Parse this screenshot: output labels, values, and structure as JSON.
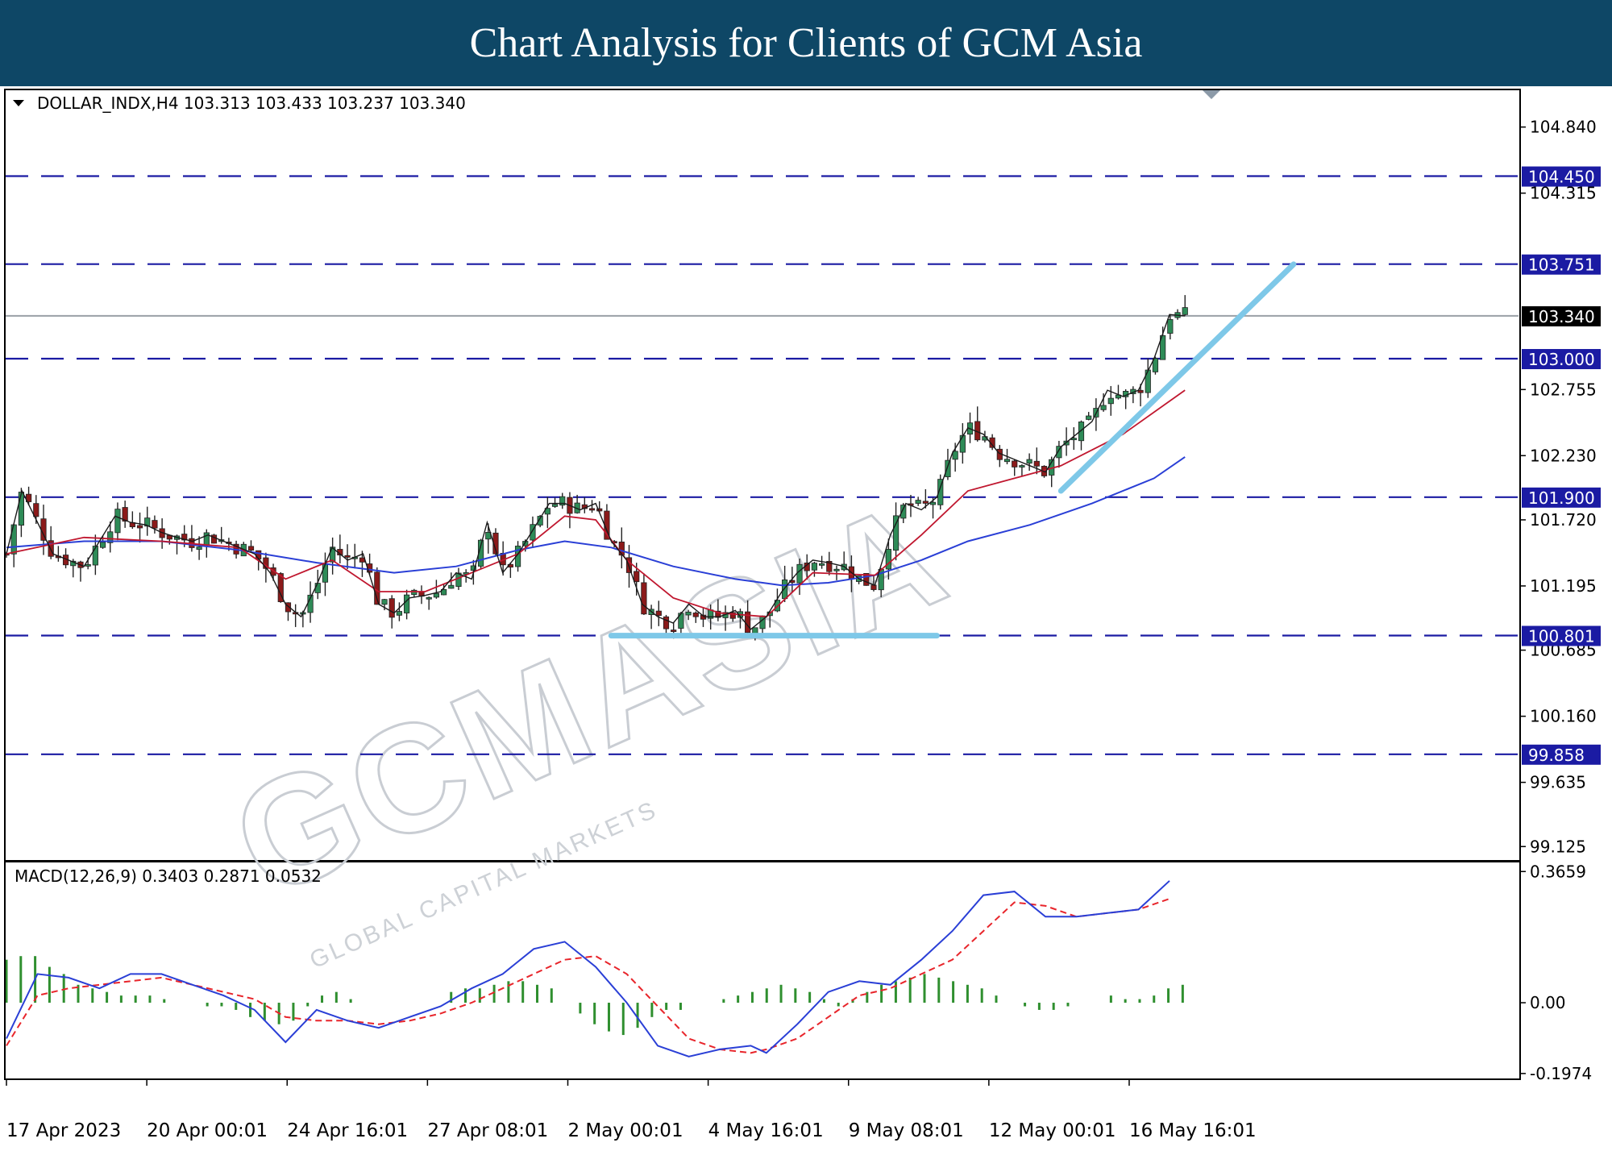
{
  "banner": {
    "title": "Chart Analysis for Clients of GCM Asia",
    "bg": "#0e4766"
  },
  "header": {
    "symbol_line": "DOLLAR_INDX,H4 103.313 103.433 103.237 103.340",
    "macd_line": "MACD(12,26,9) 0.3403 0.2871 0.0532"
  },
  "watermark": {
    "brand": "GCMASIA",
    "sub": "GLOBAL CAPITAL MARKETS"
  },
  "chart_data": {
    "type": "candlestick",
    "symbol": "DOLLAR_INDX",
    "timeframe": "H4",
    "last_ohlc": {
      "open": 103.313,
      "high": 103.433,
      "low": 103.237,
      "close": 103.34
    },
    "price_axis": {
      "range": [
        99.05,
        105.1
      ],
      "ticks": [
        "104.840",
        "104.315",
        "102.755",
        "102.230",
        "101.720",
        "101.195",
        "100.685",
        "100.160",
        "99.635",
        "99.125"
      ]
    },
    "levels": [
      {
        "value": 104.45,
        "label": "104.450"
      },
      {
        "value": 103.751,
        "label": "103.751"
      },
      {
        "value": 103.0,
        "label": "103.000"
      },
      {
        "value": 101.9,
        "label": "101.900"
      },
      {
        "value": 100.801,
        "label": "100.801"
      },
      {
        "value": 99.858,
        "label": "99.858"
      }
    ],
    "current_price": {
      "value": 103.34,
      "label": "103.340"
    },
    "time_axis": [
      "17 Apr 2023",
      "20 Apr 00:01",
      "24 Apr 16:01",
      "27 Apr 08:01",
      "2 May 00:01",
      "4 May 16:01",
      "9 May 08:01",
      "12 May 00:01",
      "16 May 16:01"
    ],
    "close_path": [
      [
        0,
        101.45
      ],
      [
        2,
        101.95
      ],
      [
        4,
        101.7
      ],
      [
        6,
        101.45
      ],
      [
        8,
        101.4
      ],
      [
        10,
        101.35
      ],
      [
        12,
        101.55
      ],
      [
        14,
        101.75
      ],
      [
        16,
        101.7
      ],
      [
        18,
        101.68
      ],
      [
        20,
        101.62
      ],
      [
        22,
        101.58
      ],
      [
        24,
        101.55
      ],
      [
        26,
        101.6
      ],
      [
        28,
        101.55
      ],
      [
        30,
        101.5
      ],
      [
        32,
        101.45
      ],
      [
        34,
        101.3
      ],
      [
        36,
        101.05
      ],
      [
        38,
        100.95
      ],
      [
        40,
        101.2
      ],
      [
        42,
        101.5
      ],
      [
        44,
        101.4
      ],
      [
        46,
        101.45
      ],
      [
        48,
        101.05
      ],
      [
        50,
        100.98
      ],
      [
        52,
        101.1
      ],
      [
        54,
        101.12
      ],
      [
        56,
        101.15
      ],
      [
        58,
        101.3
      ],
      [
        60,
        101.25
      ],
      [
        62,
        101.7
      ],
      [
        64,
        101.3
      ],
      [
        66,
        101.45
      ],
      [
        68,
        101.65
      ],
      [
        70,
        101.85
      ],
      [
        72,
        101.85
      ],
      [
        74,
        101.8
      ],
      [
        76,
        101.85
      ],
      [
        78,
        101.55
      ],
      [
        80,
        101.4
      ],
      [
        82,
        101.05
      ],
      [
        84,
        100.95
      ],
      [
        86,
        100.9
      ],
      [
        88,
        101.05
      ],
      [
        90,
        100.95
      ],
      [
        92,
        100.95
      ],
      [
        94,
        101.0
      ],
      [
        96,
        100.85
      ],
      [
        98,
        100.95
      ],
      [
        100,
        101.15
      ],
      [
        102,
        101.3
      ],
      [
        104,
        101.4
      ],
      [
        106,
        101.38
      ],
      [
        108,
        101.35
      ],
      [
        110,
        101.25
      ],
      [
        112,
        101.2
      ],
      [
        114,
        101.6
      ],
      [
        116,
        101.85
      ],
      [
        118,
        101.8
      ],
      [
        120,
        101.9
      ],
      [
        122,
        102.25
      ],
      [
        124,
        102.45
      ],
      [
        126,
        102.4
      ],
      [
        128,
        102.25
      ],
      [
        130,
        102.2
      ],
      [
        132,
        102.15
      ],
      [
        134,
        102.1
      ],
      [
        136,
        102.3
      ],
      [
        138,
        102.4
      ],
      [
        140,
        102.5
      ],
      [
        142,
        102.75
      ],
      [
        144,
        102.7
      ],
      [
        146,
        102.75
      ],
      [
        148,
        103.0
      ],
      [
        150,
        103.35
      ],
      [
        152,
        103.34
      ]
    ],
    "ma_fast": [
      [
        0,
        101.45
      ],
      [
        10,
        101.58
      ],
      [
        20,
        101.55
      ],
      [
        30,
        101.5
      ],
      [
        36,
        101.25
      ],
      [
        42,
        101.4
      ],
      [
        48,
        101.15
      ],
      [
        54,
        101.15
      ],
      [
        60,
        101.3
      ],
      [
        66,
        101.45
      ],
      [
        72,
        101.75
      ],
      [
        76,
        101.72
      ],
      [
        80,
        101.4
      ],
      [
        86,
        101.1
      ],
      [
        92,
        100.98
      ],
      [
        98,
        100.95
      ],
      [
        104,
        101.3
      ],
      [
        112,
        101.28
      ],
      [
        118,
        101.6
      ],
      [
        124,
        101.95
      ],
      [
        130,
        102.05
      ],
      [
        136,
        102.15
      ],
      [
        144,
        102.4
      ],
      [
        152,
        102.75
      ]
    ],
    "ma_slow": [
      [
        0,
        101.5
      ],
      [
        10,
        101.55
      ],
      [
        20,
        101.55
      ],
      [
        30,
        101.48
      ],
      [
        40,
        101.38
      ],
      [
        50,
        101.3
      ],
      [
        58,
        101.35
      ],
      [
        66,
        101.48
      ],
      [
        72,
        101.55
      ],
      [
        78,
        101.5
      ],
      [
        86,
        101.35
      ],
      [
        94,
        101.25
      ],
      [
        100,
        101.2
      ],
      [
        106,
        101.22
      ],
      [
        112,
        101.28
      ],
      [
        118,
        101.4
      ],
      [
        124,
        101.55
      ],
      [
        132,
        101.68
      ],
      [
        140,
        101.85
      ],
      [
        148,
        102.05
      ],
      [
        152,
        102.22
      ]
    ],
    "support_line": {
      "x": [
        78,
        120
      ],
      "value": 100.8
    },
    "trend_line": {
      "from": [
        136,
        101.95
      ],
      "to": [
        166,
        103.75
      ]
    },
    "macd": {
      "label": "MACD(12,26,9)",
      "values": {
        "macd": 0.3403,
        "signal": 0.2871,
        "histogram": 0.0532
      },
      "axis": {
        "range": [
          -0.2,
          0.38
        ],
        "ticks": [
          "0.3659",
          "0.00",
          "-0.1974"
        ]
      },
      "macd_line": [
        [
          0,
          -0.1
        ],
        [
          4,
          0.08
        ],
        [
          8,
          0.07
        ],
        [
          12,
          0.04
        ],
        [
          16,
          0.08
        ],
        [
          20,
          0.08
        ],
        [
          24,
          0.05
        ],
        [
          28,
          0.02
        ],
        [
          32,
          -0.02
        ],
        [
          36,
          -0.11
        ],
        [
          40,
          -0.02
        ],
        [
          44,
          -0.05
        ],
        [
          48,
          -0.07
        ],
        [
          52,
          -0.04
        ],
        [
          56,
          -0.01
        ],
        [
          60,
          0.04
        ],
        [
          64,
          0.08
        ],
        [
          68,
          0.15
        ],
        [
          72,
          0.17
        ],
        [
          76,
          0.1
        ],
        [
          80,
          0.0
        ],
        [
          84,
          -0.12
        ],
        [
          88,
          -0.15
        ],
        [
          92,
          -0.13
        ],
        [
          96,
          -0.12
        ],
        [
          98,
          -0.14
        ],
        [
          102,
          -0.06
        ],
        [
          106,
          0.03
        ],
        [
          110,
          0.06
        ],
        [
          114,
          0.05
        ],
        [
          118,
          0.12
        ],
        [
          122,
          0.2
        ],
        [
          126,
          0.3
        ],
        [
          130,
          0.31
        ],
        [
          134,
          0.24
        ],
        [
          138,
          0.24
        ],
        [
          142,
          0.25
        ],
        [
          146,
          0.26
        ],
        [
          150,
          0.34
        ]
      ],
      "signal_line": [
        [
          0,
          -0.12
        ],
        [
          4,
          0.02
        ],
        [
          8,
          0.04
        ],
        [
          12,
          0.05
        ],
        [
          16,
          0.06
        ],
        [
          20,
          0.07
        ],
        [
          24,
          0.05
        ],
        [
          28,
          0.03
        ],
        [
          32,
          0.01
        ],
        [
          36,
          -0.04
        ],
        [
          40,
          -0.05
        ],
        [
          44,
          -0.05
        ],
        [
          48,
          -0.06
        ],
        [
          52,
          -0.05
        ],
        [
          56,
          -0.03
        ],
        [
          60,
          0.0
        ],
        [
          64,
          0.04
        ],
        [
          68,
          0.08
        ],
        [
          72,
          0.12
        ],
        [
          76,
          0.13
        ],
        [
          80,
          0.08
        ],
        [
          84,
          -0.01
        ],
        [
          88,
          -0.1
        ],
        [
          92,
          -0.13
        ],
        [
          96,
          -0.14
        ],
        [
          98,
          -0.13
        ],
        [
          102,
          -0.1
        ],
        [
          106,
          -0.04
        ],
        [
          110,
          0.02
        ],
        [
          114,
          0.04
        ],
        [
          118,
          0.08
        ],
        [
          122,
          0.12
        ],
        [
          126,
          0.2
        ],
        [
          130,
          0.28
        ],
        [
          134,
          0.27
        ],
        [
          138,
          0.24
        ],
        [
          142,
          0.25
        ],
        [
          146,
          0.26
        ],
        [
          150,
          0.29
        ]
      ],
      "histogram": [
        0.12,
        0.13,
        0.13,
        0.1,
        0.08,
        0.05,
        0.04,
        0.03,
        0.02,
        0.02,
        0.02,
        0.01,
        0.0,
        0.0,
        -0.01,
        -0.01,
        -0.02,
        -0.04,
        -0.05,
        -0.06,
        -0.05,
        -0.01,
        0.02,
        0.03,
        0.01,
        0.0,
        0.0,
        0.0,
        0.0,
        0.0,
        0.0,
        0.03,
        0.04,
        0.04,
        0.05,
        0.06,
        0.06,
        0.05,
        0.04,
        0.0,
        -0.03,
        -0.06,
        -0.08,
        -0.09,
        -0.07,
        -0.04,
        -0.02,
        -0.02,
        0.0,
        0.0,
        0.01,
        0.02,
        0.03,
        0.04,
        0.05,
        0.04,
        0.03,
        0.01,
        -0.01,
        0.01,
        0.03,
        0.05,
        0.06,
        0.07,
        0.08,
        0.07,
        0.06,
        0.05,
        0.04,
        0.02,
        0.0,
        -0.01,
        -0.02,
        -0.02,
        -0.01,
        0.0,
        0.0,
        0.02,
        0.01,
        0.01,
        0.02,
        0.04,
        0.05
      ]
    },
    "colors": {
      "bull": "#2e8b57",
      "bear": "#8b1a1a",
      "level": "#1b1ba3",
      "ma_fast": "#c0172f",
      "ma_slow": "#2a3fd6",
      "close": "#1a1a1a",
      "trend": "#7ec8e8",
      "macd_line": "#2a3fd6",
      "signal_line": "#e8252b",
      "hist": "#2f8f2f"
    }
  }
}
